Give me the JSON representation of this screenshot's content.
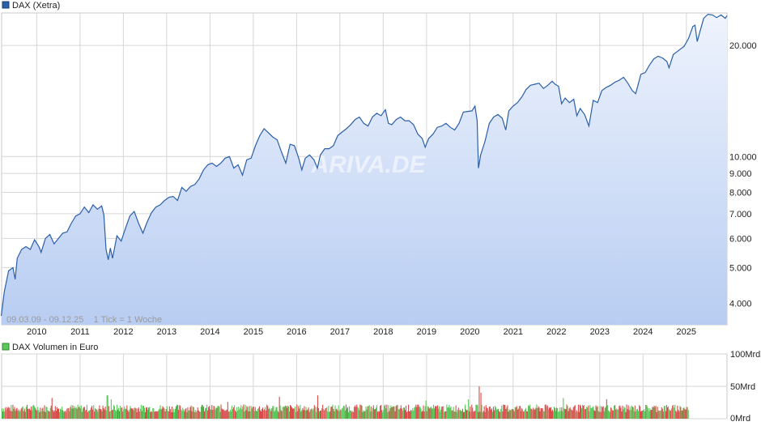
{
  "chart_data": [
    {
      "type": "area",
      "legend": "DAX (Xetra)",
      "yscale": "log",
      "ylim": [
        3500,
        24500
      ],
      "xlim": [
        "2009-03-09",
        "2025-12-09"
      ],
      "yticks": [
        {
          "value": 20000,
          "label": "20.000"
        },
        {
          "value": 10000,
          "label": "10.000"
        },
        {
          "value": 9000,
          "label": "9.000"
        },
        {
          "value": 8000,
          "label": "8.000"
        },
        {
          "value": 7000,
          "label": "7.000"
        },
        {
          "value": 6000,
          "label": "6.000"
        },
        {
          "value": 5000,
          "label": "5.000"
        },
        {
          "value": 4000,
          "label": "4.000"
        }
      ],
      "xticks": [
        "2010",
        "2011",
        "2012",
        "2013",
        "2014",
        "2015",
        "2016",
        "2017",
        "2018",
        "2019",
        "2020",
        "2021",
        "2022",
        "2023",
        "2024",
        "2025"
      ],
      "info_text": "09.03.09 - 09.12.25    1 Tick = 1 Woche",
      "watermark": "ARIVA.DE",
      "line_color": "#2b5fa8",
      "fill_color_top": "#eef3fd",
      "fill_color_bottom": "#b8cdf2",
      "points": [
        [
          2009.18,
          3700
        ],
        [
          2009.25,
          4300
        ],
        [
          2009.35,
          4900
        ],
        [
          2009.45,
          5000
        ],
        [
          2009.5,
          4650
        ],
        [
          2009.55,
          5300
        ],
        [
          2009.65,
          5600
        ],
        [
          2009.75,
          5700
        ],
        [
          2009.85,
          5600
        ],
        [
          2009.95,
          5950
        ],
        [
          2010.05,
          5700
        ],
        [
          2010.1,
          5500
        ],
        [
          2010.2,
          6000
        ],
        [
          2010.3,
          6150
        ],
        [
          2010.4,
          5800
        ],
        [
          2010.5,
          6000
        ],
        [
          2010.6,
          6200
        ],
        [
          2010.7,
          6250
        ],
        [
          2010.8,
          6600
        ],
        [
          2010.9,
          6900
        ],
        [
          2011.0,
          7000
        ],
        [
          2011.1,
          7300
        ],
        [
          2011.2,
          7050
        ],
        [
          2011.3,
          7400
        ],
        [
          2011.4,
          7200
        ],
        [
          2011.5,
          7350
        ],
        [
          2011.55,
          6950
        ],
        [
          2011.6,
          5600
        ],
        [
          2011.65,
          5250
        ],
        [
          2011.7,
          5650
        ],
        [
          2011.75,
          5300
        ],
        [
          2011.85,
          6100
        ],
        [
          2011.95,
          5900
        ],
        [
          2012.05,
          6400
        ],
        [
          2012.15,
          6900
        ],
        [
          2012.25,
          7100
        ],
        [
          2012.35,
          6600
        ],
        [
          2012.45,
          6200
        ],
        [
          2012.55,
          6650
        ],
        [
          2012.65,
          7050
        ],
        [
          2012.75,
          7300
        ],
        [
          2012.85,
          7400
        ],
        [
          2012.95,
          7600
        ],
        [
          2013.05,
          7750
        ],
        [
          2013.15,
          7800
        ],
        [
          2013.25,
          7600
        ],
        [
          2013.35,
          8250
        ],
        [
          2013.45,
          8050
        ],
        [
          2013.55,
          8300
        ],
        [
          2013.65,
          8400
        ],
        [
          2013.75,
          8700
        ],
        [
          2013.85,
          9200
        ],
        [
          2013.95,
          9500
        ],
        [
          2014.05,
          9600
        ],
        [
          2014.15,
          9400
        ],
        [
          2014.25,
          9600
        ],
        [
          2014.35,
          9900
        ],
        [
          2014.45,
          10000
        ],
        [
          2014.55,
          9300
        ],
        [
          2014.65,
          9500
        ],
        [
          2014.75,
          8900
        ],
        [
          2014.85,
          9800
        ],
        [
          2014.95,
          9900
        ],
        [
          2015.05,
          10700
        ],
        [
          2015.15,
          11400
        ],
        [
          2015.25,
          11900
        ],
        [
          2015.35,
          11600
        ],
        [
          2015.45,
          11300
        ],
        [
          2015.55,
          11100
        ],
        [
          2015.65,
          10300
        ],
        [
          2015.75,
          9600
        ],
        [
          2015.85,
          10800
        ],
        [
          2015.95,
          10700
        ],
        [
          2016.05,
          9900
        ],
        [
          2016.12,
          9200
        ],
        [
          2016.2,
          9900
        ],
        [
          2016.3,
          10100
        ],
        [
          2016.4,
          9800
        ],
        [
          2016.48,
          9300
        ],
        [
          2016.55,
          10100
        ],
        [
          2016.65,
          10500
        ],
        [
          2016.75,
          10500
        ],
        [
          2016.85,
          10700
        ],
        [
          2016.95,
          11400
        ],
        [
          2017.05,
          11650
        ],
        [
          2017.15,
          11900
        ],
        [
          2017.25,
          12200
        ],
        [
          2017.35,
          12600
        ],
        [
          2017.45,
          12800
        ],
        [
          2017.55,
          12300
        ],
        [
          2017.65,
          12100
        ],
        [
          2017.75,
          12800
        ],
        [
          2017.85,
          13100
        ],
        [
          2017.95,
          12900
        ],
        [
          2018.05,
          13400
        ],
        [
          2018.12,
          12300
        ],
        [
          2018.2,
          12200
        ],
        [
          2018.3,
          12600
        ],
        [
          2018.4,
          12800
        ],
        [
          2018.5,
          12500
        ],
        [
          2018.6,
          12500
        ],
        [
          2018.7,
          12200
        ],
        [
          2018.8,
          11500
        ],
        [
          2018.9,
          11200
        ],
        [
          2018.97,
          10600
        ],
        [
          2019.05,
          11200
        ],
        [
          2019.15,
          11500
        ],
        [
          2019.25,
          12000
        ],
        [
          2019.35,
          12100
        ],
        [
          2019.45,
          12300
        ],
        [
          2019.55,
          12000
        ],
        [
          2019.65,
          11800
        ],
        [
          2019.75,
          12300
        ],
        [
          2019.85,
          13200
        ],
        [
          2019.95,
          13250
        ],
        [
          2020.05,
          13300
        ],
        [
          2020.12,
          13700
        ],
        [
          2020.17,
          12500
        ],
        [
          2020.2,
          9300
        ],
        [
          2020.25,
          10100
        ],
        [
          2020.35,
          11000
        ],
        [
          2020.45,
          12300
        ],
        [
          2020.55,
          12800
        ],
        [
          2020.65,
          13000
        ],
        [
          2020.75,
          12700
        ],
        [
          2020.83,
          11800
        ],
        [
          2020.9,
          13300
        ],
        [
          2021.0,
          13700
        ],
        [
          2021.1,
          14000
        ],
        [
          2021.2,
          14500
        ],
        [
          2021.3,
          15200
        ],
        [
          2021.4,
          15600
        ],
        [
          2021.5,
          15700
        ],
        [
          2021.6,
          15800
        ],
        [
          2021.7,
          15300
        ],
        [
          2021.8,
          15600
        ],
        [
          2021.9,
          16000
        ],
        [
          2021.97,
          15700
        ],
        [
          2022.05,
          15500
        ],
        [
          2022.12,
          13900
        ],
        [
          2022.2,
          14400
        ],
        [
          2022.3,
          14000
        ],
        [
          2022.4,
          14300
        ],
        [
          2022.47,
          12900
        ],
        [
          2022.55,
          13500
        ],
        [
          2022.65,
          13000
        ],
        [
          2022.75,
          12100
        ],
        [
          2022.85,
          14200
        ],
        [
          2022.95,
          14000
        ],
        [
          2023.05,
          15100
        ],
        [
          2023.15,
          15400
        ],
        [
          2023.25,
          15600
        ],
        [
          2023.35,
          15900
        ],
        [
          2023.45,
          16100
        ],
        [
          2023.55,
          16400
        ],
        [
          2023.65,
          15800
        ],
        [
          2023.75,
          15100
        ],
        [
          2023.83,
          14800
        ],
        [
          2023.95,
          16700
        ],
        [
          2024.05,
          16900
        ],
        [
          2024.15,
          17700
        ],
        [
          2024.25,
          18400
        ],
        [
          2024.35,
          18700
        ],
        [
          2024.45,
          18500
        ],
        [
          2024.55,
          18100
        ],
        [
          2024.6,
          17400
        ],
        [
          2024.7,
          18900
        ],
        [
          2024.8,
          19300
        ],
        [
          2024.95,
          19900
        ],
        [
          2025.05,
          20900
        ],
        [
          2025.15,
          22500
        ],
        [
          2025.2,
          22700
        ],
        [
          2025.25,
          20500
        ],
        [
          2025.3,
          21500
        ],
        [
          2025.4,
          23700
        ],
        [
          2025.5,
          24300
        ],
        [
          2025.6,
          24200
        ],
        [
          2025.7,
          23800
        ],
        [
          2025.8,
          24200
        ],
        [
          2025.9,
          23700
        ],
        [
          2025.94,
          24100
        ]
      ]
    },
    {
      "type": "bar",
      "legend": "DAX Volumen in Euro",
      "ylim": [
        0,
        100
      ],
      "yticks": [
        {
          "value": 100,
          "label": "100Mrd"
        },
        {
          "value": 50,
          "label": "50Mrd"
        },
        {
          "value": 0,
          "label": "0Mrd"
        }
      ],
      "xlim": [
        "2009-03-09",
        "2025-12-09"
      ],
      "up_color": "#5ac85a",
      "down_color": "#d84c4c",
      "typical_range": [
        10,
        22
      ],
      "spikes": [
        {
          "x": 2010.35,
          "value": 32
        },
        {
          "x": 2011.62,
          "value": 36
        },
        {
          "x": 2011.7,
          "value": 30
        },
        {
          "x": 2014.4,
          "value": 26
        },
        {
          "x": 2015.6,
          "value": 34
        },
        {
          "x": 2016.48,
          "value": 36
        },
        {
          "x": 2018.97,
          "value": 28
        },
        {
          "x": 2019.95,
          "value": 30
        },
        {
          "x": 2020.2,
          "value": 50
        },
        {
          "x": 2020.25,
          "value": 40
        },
        {
          "x": 2022.15,
          "value": 32
        },
        {
          "x": 2023.15,
          "value": 30
        }
      ]
    }
  ]
}
